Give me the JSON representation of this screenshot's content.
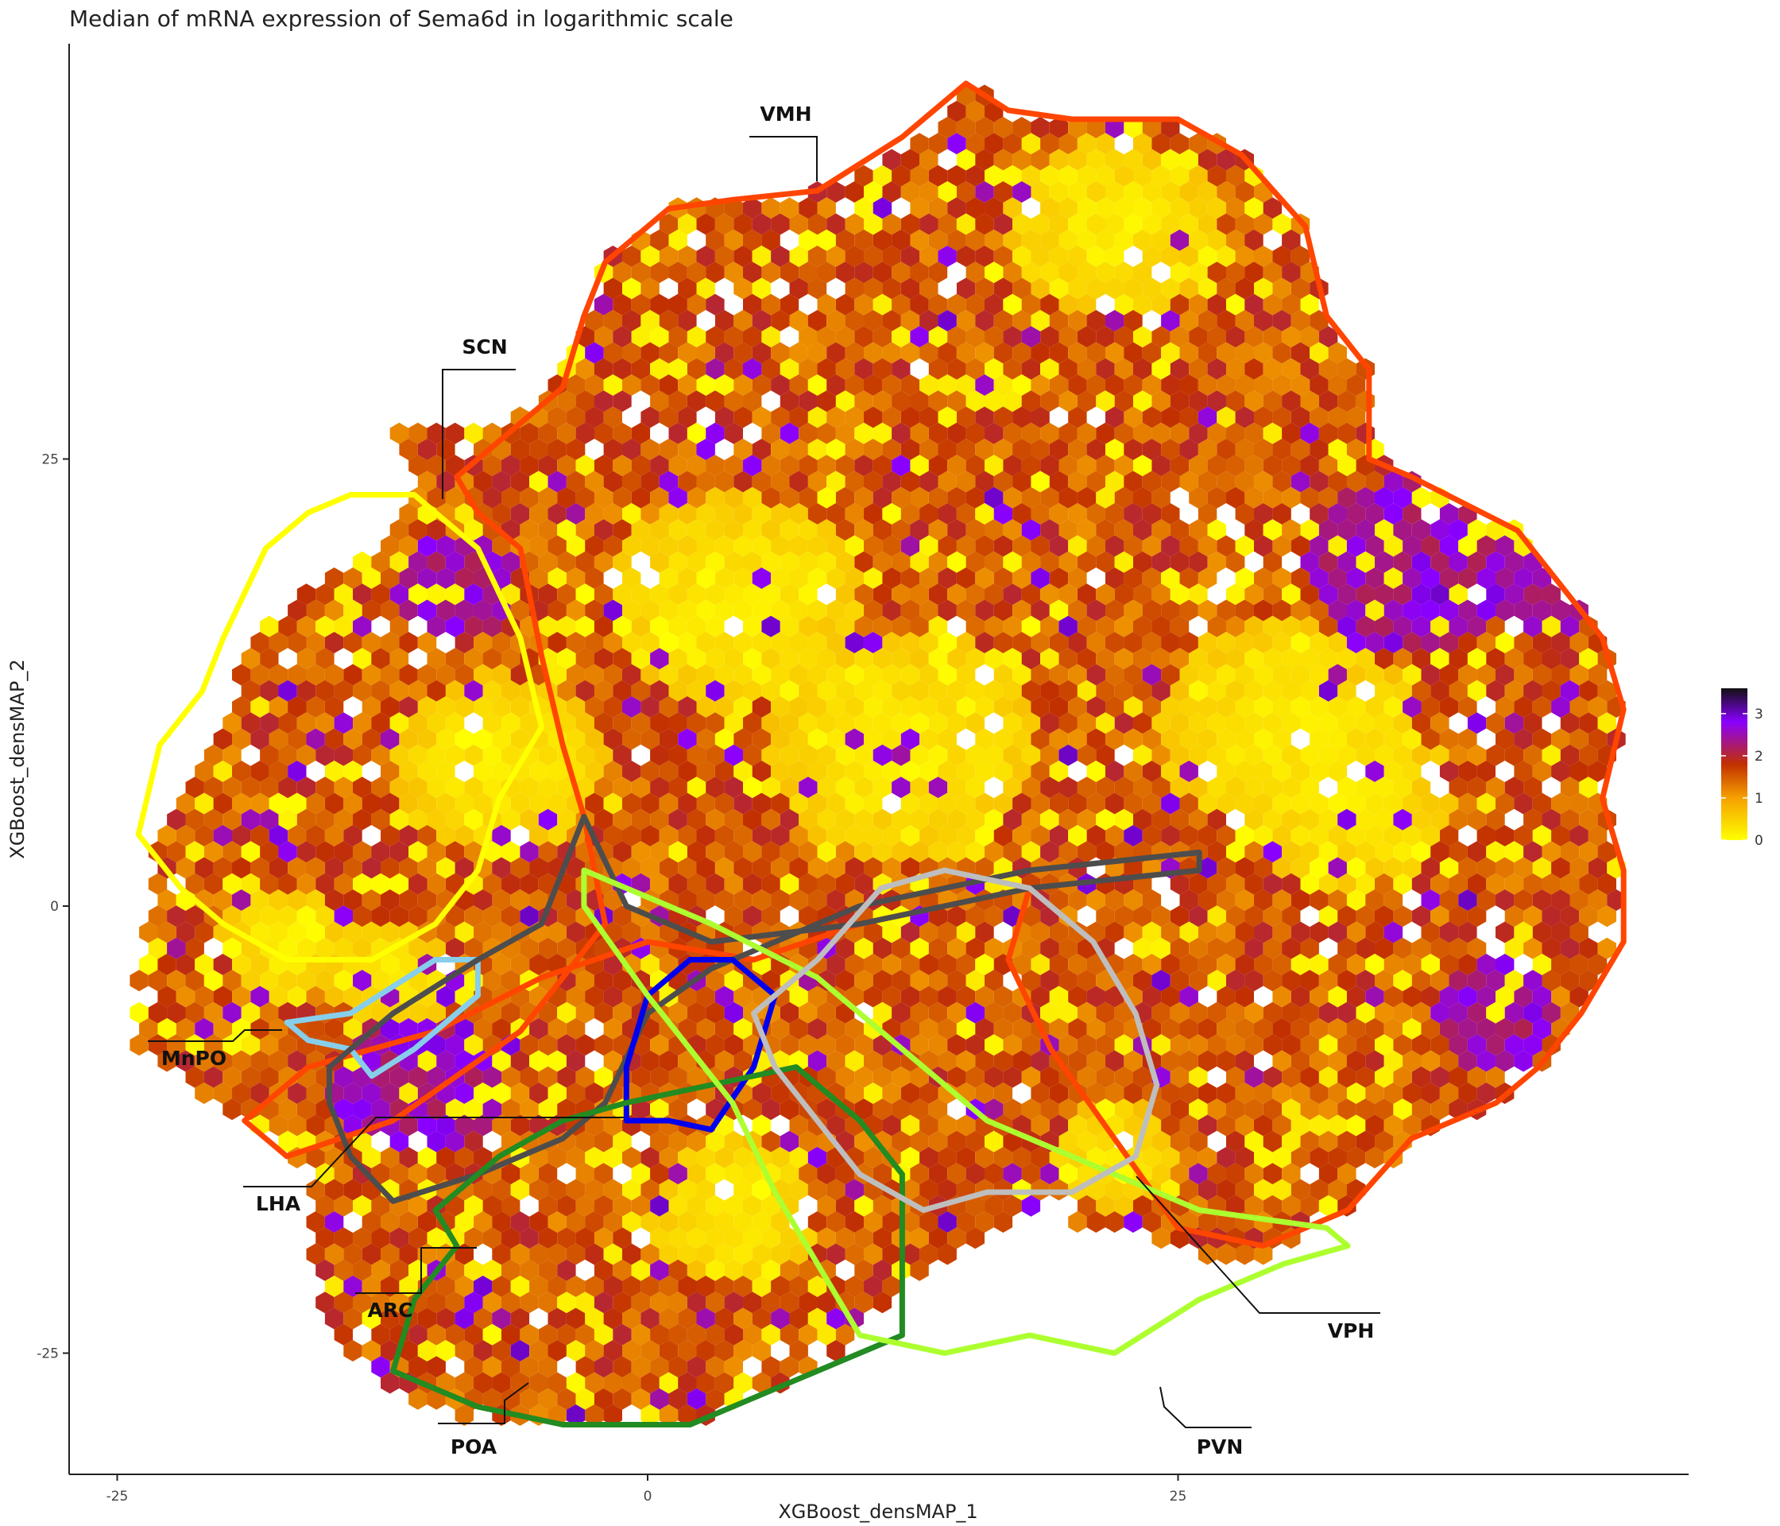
{
  "chart_data": {
    "type": "heatmap",
    "subtype": "hexbin",
    "title": "Median of mRNA expression of Sema6d in logarithmic scale",
    "xlabel": "XGBoost_densMAP_1",
    "ylabel": "XGBoost_densMAP_2",
    "x_ticks": [
      "-25",
      "0",
      "25"
    ],
    "y_ticks": [
      "25",
      "0",
      "-25"
    ],
    "xlim": [
      -28,
      49
    ],
    "ylim": [
      -32,
      48.5
    ],
    "grid": false,
    "legend": {
      "placement": "right",
      "ticks": [
        "0",
        "1",
        "2",
        "3"
      ],
      "range": [
        0,
        3.6
      ],
      "colors": [
        "#ffff00",
        "#f5a000",
        "#c23000",
        "#8a00ff",
        "#111111"
      ]
    },
    "regions": [
      {
        "name": "VMH",
        "color": "#ff4500"
      },
      {
        "name": "SCN",
        "color": "#ffff00"
      },
      {
        "name": "MnPO",
        "color": "#87ceeb"
      },
      {
        "name": "LHA",
        "color": "#4d4d4d"
      },
      {
        "name": "ARC",
        "color": "#0000ee"
      },
      {
        "name": "POA",
        "color": "#228b22"
      },
      {
        "name": "PVN",
        "color": "#adff2f"
      },
      {
        "name": "VPH",
        "color": "#bebebe"
      }
    ]
  }
}
